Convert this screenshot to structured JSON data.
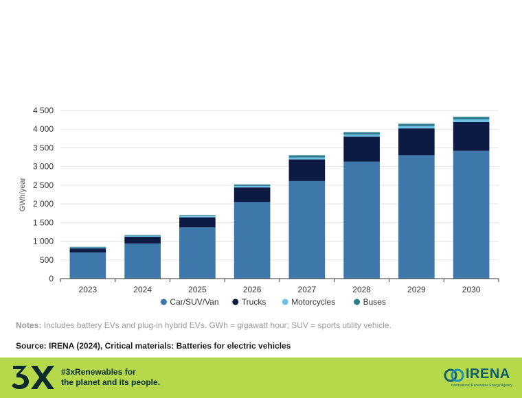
{
  "chart_data": {
    "type": "bar",
    "stacked": true,
    "categories": [
      "2023",
      "2024",
      "2025",
      "2026",
      "2027",
      "2028",
      "2029",
      "2030"
    ],
    "series": [
      {
        "name": "Car/SUV/Van",
        "color": "#3e78ab",
        "values": [
          700,
          940,
          1370,
          2050,
          2610,
          3130,
          3300,
          3420
        ]
      },
      {
        "name": "Trucks",
        "color": "#0c1a44",
        "values": [
          110,
          180,
          270,
          390,
          580,
          670,
          720,
          770
        ]
      },
      {
        "name": "Motorcycles",
        "color": "#6cc3e6",
        "values": [
          20,
          25,
          30,
          40,
          50,
          55,
          60,
          70
        ]
      },
      {
        "name": "Buses",
        "color": "#2e7d8e",
        "values": [
          20,
          20,
          25,
          40,
          60,
          65,
          65,
          70
        ]
      }
    ],
    "ylabel": "GWh/year",
    "xlabel": "",
    "ylim": [
      0,
      4500
    ],
    "yticks": [
      0,
      500,
      1000,
      1500,
      2000,
      2500,
      3000,
      3500,
      4000,
      4500
    ],
    "ytick_labels": [
      "0",
      "500",
      "1 000",
      "1 500",
      "2 000",
      "2 500",
      "3 000",
      "3 500",
      "4 000",
      "4 500"
    ],
    "grid": true,
    "legend_position": "bottom"
  },
  "notes": {
    "label": "Notes:",
    "text": " Includes battery EVs and plug-in hybrid EVs. GWh = gigawatt hour; SUV = sports utility vehicle."
  },
  "source": "Source: IRENA (2024), Critical materials: Batteries for electric vehicles",
  "footer": {
    "logo_text": "3X",
    "tagline_line1": "#3xRenewables for",
    "tagline_line2": "the planet and its people.",
    "irena_name": "IRENA",
    "irena_full": "International Renewable Energy Agency",
    "logo_icon": "irena-logo-icon"
  }
}
